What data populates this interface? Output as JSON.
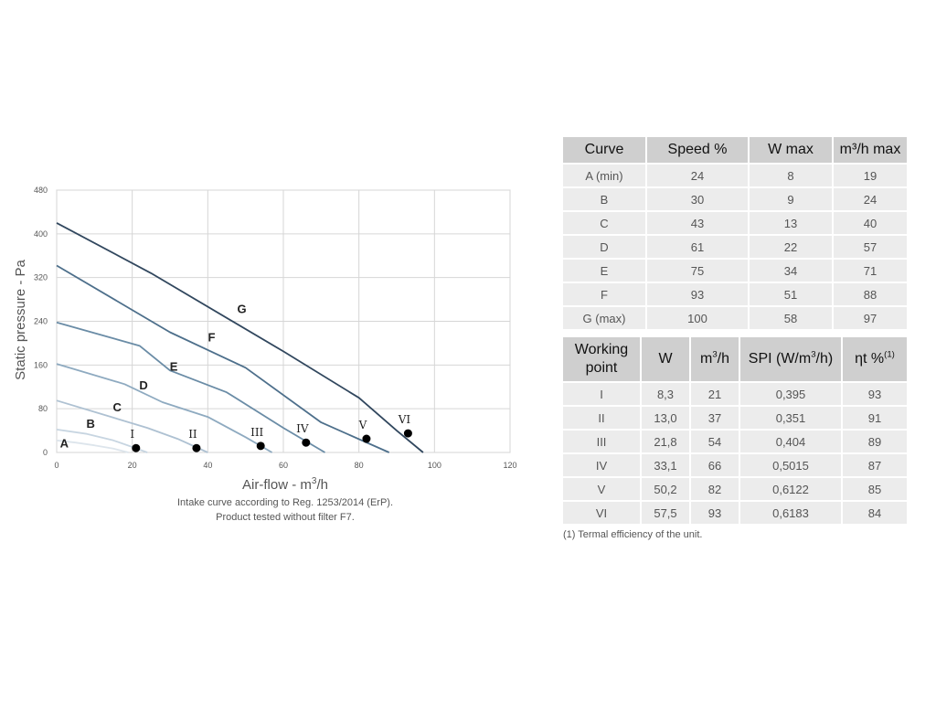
{
  "chart_data": {
    "type": "line",
    "xlabel": "Air-flow - m³/h",
    "ylabel": "Static pressure - Pa",
    "xlim": [
      0,
      120
    ],
    "ylim": [
      0,
      480
    ],
    "xticks": [
      0,
      20,
      40,
      60,
      80,
      100,
      120
    ],
    "yticks": [
      0,
      80,
      160,
      240,
      320,
      400,
      480
    ],
    "grid": true,
    "series": [
      {
        "name": "A",
        "color": "#dde5ec",
        "points": [
          [
            0,
            22
          ],
          [
            5,
            18
          ],
          [
            10,
            13
          ],
          [
            15,
            7
          ],
          [
            19,
            0
          ]
        ]
      },
      {
        "name": "B",
        "color": "#c7d5e1",
        "points": [
          [
            0,
            42
          ],
          [
            8,
            34
          ],
          [
            15,
            22
          ],
          [
            20,
            10
          ],
          [
            24,
            0
          ]
        ]
      },
      {
        "name": "C",
        "color": "#aec1d2",
        "points": [
          [
            0,
            95
          ],
          [
            12,
            70
          ],
          [
            24,
            45
          ],
          [
            32,
            25
          ],
          [
            40,
            0
          ]
        ]
      },
      {
        "name": "D",
        "color": "#8eaac0",
        "points": [
          [
            0,
            162
          ],
          [
            18,
            125
          ],
          [
            28,
            92
          ],
          [
            40,
            65
          ],
          [
            50,
            28
          ],
          [
            57,
            0
          ]
        ]
      },
      {
        "name": "E",
        "color": "#6a8ca6",
        "points": [
          [
            0,
            238
          ],
          [
            22,
            195
          ],
          [
            30,
            150
          ],
          [
            45,
            110
          ],
          [
            60,
            45
          ],
          [
            71,
            0
          ]
        ]
      },
      {
        "name": "F",
        "color": "#4d6f8b",
        "points": [
          [
            0,
            342
          ],
          [
            30,
            220
          ],
          [
            50,
            155
          ],
          [
            70,
            55
          ],
          [
            88,
            0
          ]
        ]
      },
      {
        "name": "G",
        "color": "#31475e",
        "points": [
          [
            0,
            420
          ],
          [
            25,
            328
          ],
          [
            60,
            185
          ],
          [
            80,
            100
          ],
          [
            90,
            40
          ],
          [
            97,
            0
          ]
        ]
      }
    ],
    "curve_labels": [
      {
        "name": "A",
        "x": 2,
        "y": 9
      },
      {
        "name": "B",
        "x": 9,
        "y": 45
      },
      {
        "name": "C",
        "x": 16,
        "y": 75
      },
      {
        "name": "D",
        "x": 23,
        "y": 115
      },
      {
        "name": "E",
        "x": 31,
        "y": 150
      },
      {
        "name": "F",
        "x": 41,
        "y": 203
      },
      {
        "name": "G",
        "x": 49,
        "y": 255
      }
    ],
    "working_points": [
      {
        "label": "I",
        "x": 21,
        "y": 8
      },
      {
        "label": "II",
        "x": 37,
        "y": 8
      },
      {
        "label": "III",
        "x": 54,
        "y": 12
      },
      {
        "label": "IV",
        "x": 66,
        "y": 18
      },
      {
        "label": "V",
        "x": 82,
        "y": 25
      },
      {
        "label": "VI",
        "x": 93,
        "y": 35
      }
    ],
    "notes": [
      "Intake curve according to Reg. 1253/2014 (ErP).",
      "Product tested without filter F7."
    ]
  },
  "curve_table": {
    "headers": [
      "Curve",
      "Speed %",
      "W max",
      "m³/h max"
    ],
    "rows": [
      [
        "A (min)",
        "24",
        "8",
        "19"
      ],
      [
        "B",
        "30",
        "9",
        "24"
      ],
      [
        "C",
        "43",
        "13",
        "40"
      ],
      [
        "D",
        "61",
        "22",
        "57"
      ],
      [
        "E",
        "75",
        "34",
        "71"
      ],
      [
        "F",
        "93",
        "51",
        "88"
      ],
      [
        "G (max)",
        "100",
        "58",
        "97"
      ]
    ]
  },
  "wp_table": {
    "headers": [
      "Working\npoint",
      "W",
      "m³/h",
      "SPI (W/m³/h)",
      "ηt %⁽¹⁾"
    ],
    "rows": [
      [
        "I",
        "8,3",
        "21",
        "0,395",
        "93"
      ],
      [
        "II",
        "13,0",
        "37",
        "0,351",
        "91"
      ],
      [
        "III",
        "21,8",
        "54",
        "0,404",
        "89"
      ],
      [
        "IV",
        "33,1",
        "66",
        "0,5015",
        "87"
      ],
      [
        "V",
        "50,2",
        "82",
        "0,6122",
        "85"
      ],
      [
        "VI",
        "57,5",
        "93",
        "0,6183",
        "84"
      ]
    ]
  },
  "footnote": "(1) Termal efficiency of the unit."
}
